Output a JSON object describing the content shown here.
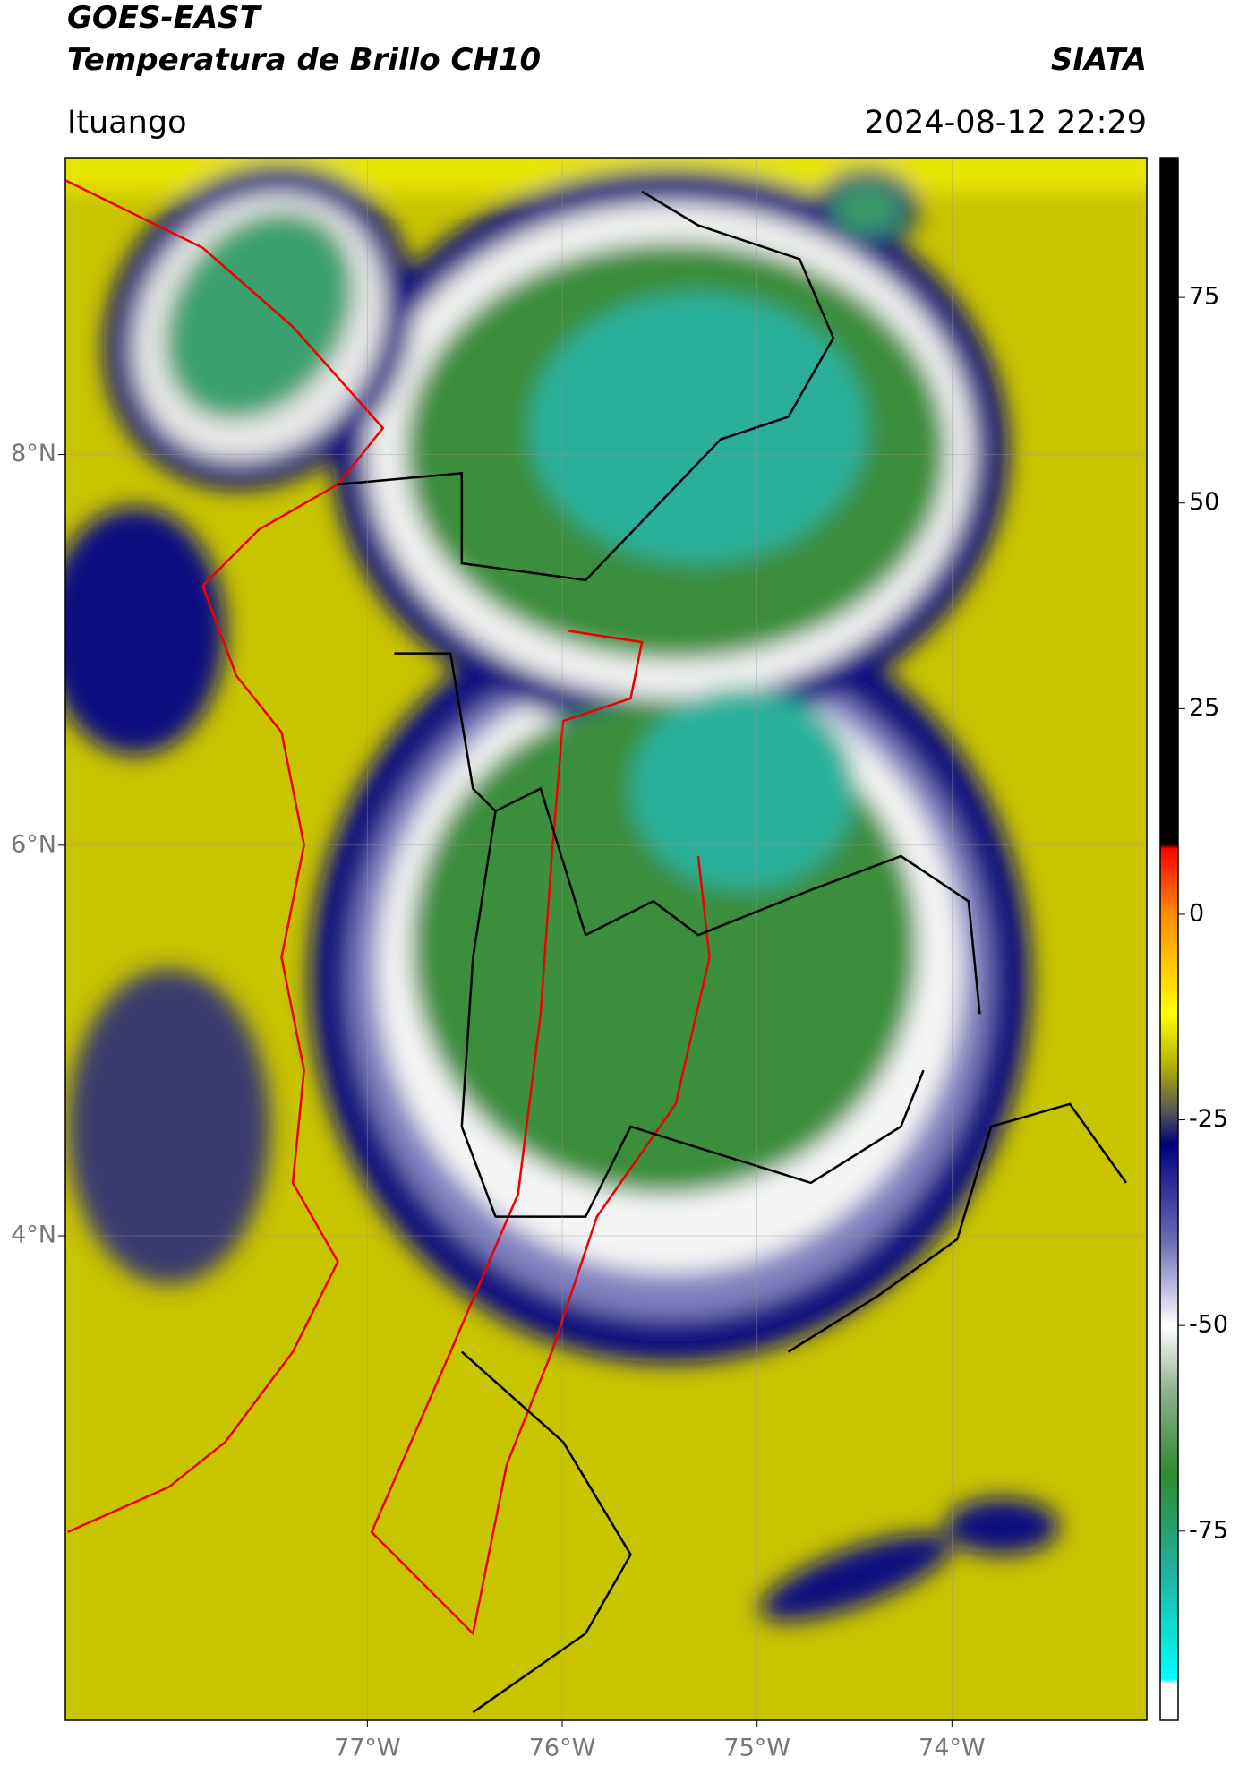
{
  "header": {
    "title": "GOES-EAST",
    "subtitle": "Temperatura de Brillo CH10",
    "source": "SIATA",
    "location": "Ituango",
    "datetime": "2024-08-12 22:29"
  },
  "map": {
    "xlim": [
      -78.55,
      -73.0
    ],
    "ylim": [
      1.52,
      9.52
    ],
    "xticks": [
      {
        "value": -77,
        "label": "77°W"
      },
      {
        "value": -76,
        "label": "76°W"
      },
      {
        "value": -75,
        "label": "75°W"
      },
      {
        "value": -74,
        "label": "74°W"
      }
    ],
    "yticks": [
      {
        "value": 8,
        "label": "8°N"
      },
      {
        "value": 6,
        "label": "6°N"
      },
      {
        "value": 4,
        "label": "4°N"
      }
    ],
    "grid": true
  },
  "colorbar": {
    "clim": [
      -98,
      92
    ],
    "ticks": [
      75,
      50,
      25,
      0,
      -25,
      -50,
      -75
    ],
    "stops": [
      {
        "value": 92,
        "color": "#000000"
      },
      {
        "value": 8.5,
        "color": "#000000"
      },
      {
        "value": 8,
        "color": "#ff0000"
      },
      {
        "value": 0,
        "color": "#ff8c00"
      },
      {
        "value": -12,
        "color": "#ffff00"
      },
      {
        "value": -18,
        "color": "#b8b800"
      },
      {
        "value": -24,
        "color": "#555555"
      },
      {
        "value": -28,
        "color": "#000080"
      },
      {
        "value": -40,
        "color": "#6f6fb8"
      },
      {
        "value": -50,
        "color": "#ffffff"
      },
      {
        "value": -58,
        "color": "#8fb08f"
      },
      {
        "value": -68,
        "color": "#2e8b2e"
      },
      {
        "value": -80,
        "color": "#20b2a0"
      },
      {
        "value": -93,
        "color": "#00ffff"
      },
      {
        "value": -93.5,
        "color": "#ffffff"
      },
      {
        "value": -98,
        "color": "#ffffff"
      }
    ]
  }
}
